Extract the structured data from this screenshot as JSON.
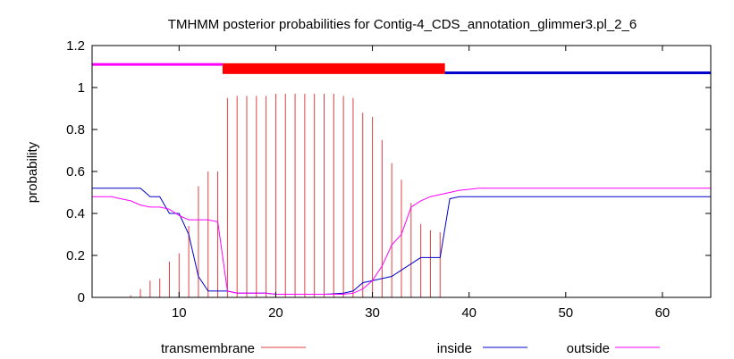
{
  "chart_data": {
    "type": "line",
    "title": "TMHMM posterior probabilities for Contig-4_CDS_annotation_glimmer3.pl_2_6",
    "xlabel": "",
    "ylabel": "probability",
    "xlim": [
      1,
      65
    ],
    "ylim": [
      0,
      1.2
    ],
    "x_ticks": [
      10,
      20,
      30,
      40,
      50,
      60
    ],
    "y_ticks": [
      0,
      0.2,
      0.4,
      0.6,
      0.8,
      1,
      1.2
    ],
    "y_tick_labels": [
      "0",
      "0.2",
      "0.4",
      "0.6",
      "0.8",
      "1",
      "1.2"
    ],
    "grid": false,
    "legend_position": "bottom",
    "x": [
      1,
      2,
      3,
      4,
      5,
      6,
      7,
      8,
      9,
      10,
      11,
      12,
      13,
      14,
      15,
      16,
      17,
      18,
      19,
      20,
      21,
      22,
      23,
      24,
      25,
      26,
      27,
      28,
      29,
      30,
      31,
      32,
      33,
      34,
      35,
      36,
      37,
      38,
      39,
      40,
      41,
      42,
      43,
      44,
      45,
      46,
      47,
      48,
      49,
      50,
      51,
      52,
      53,
      54,
      55,
      56,
      57,
      58,
      59,
      60,
      61,
      62,
      63,
      64,
      65
    ],
    "series": [
      {
        "name": "transmembrane",
        "color": "#e04040",
        "style": "impulses",
        "values": [
          0,
          0,
          0,
          0,
          0.01,
          0.04,
          0.08,
          0.09,
          0.17,
          0.21,
          0.34,
          0.53,
          0.6,
          0.6,
          0.95,
          0.96,
          0.96,
          0.96,
          0.96,
          0.97,
          0.97,
          0.97,
          0.97,
          0.97,
          0.97,
          0.97,
          0.96,
          0.95,
          0.88,
          0.86,
          0.75,
          0.64,
          0.56,
          0.45,
          0.35,
          0.32,
          0.31,
          0,
          0,
          0,
          0,
          0,
          0,
          0,
          0,
          0,
          0,
          0,
          0,
          0,
          0,
          0,
          0,
          0,
          0,
          0,
          0,
          0,
          0,
          0,
          0,
          0,
          0,
          0,
          0
        ]
      },
      {
        "name": "inside",
        "color": "#0000cc",
        "style": "line",
        "values": [
          0.52,
          0.52,
          0.52,
          0.52,
          0.52,
          0.52,
          0.48,
          0.48,
          0.4,
          0.4,
          0.3,
          0.1,
          0.03,
          0.03,
          0.03,
          0.02,
          0.02,
          0.02,
          0.02,
          0.015,
          0.015,
          0.015,
          0.015,
          0.015,
          0.015,
          0.017,
          0.02,
          0.03,
          0.07,
          0.08,
          0.09,
          0.1,
          0.13,
          0.16,
          0.19,
          0.19,
          0.19,
          0.47,
          0.48,
          0.48,
          0.48,
          0.48,
          0.48,
          0.48,
          0.48,
          0.48,
          0.48,
          0.48,
          0.48,
          0.48,
          0.48,
          0.48,
          0.48,
          0.48,
          0.48,
          0.48,
          0.48,
          0.48,
          0.48,
          0.48,
          0.48,
          0.48,
          0.48,
          0.48,
          0.48
        ]
      },
      {
        "name": "outside",
        "color": "#ff00ff",
        "style": "line",
        "values": [
          0.48,
          0.48,
          0.48,
          0.47,
          0.46,
          0.44,
          0.43,
          0.43,
          0.42,
          0.39,
          0.37,
          0.37,
          0.37,
          0.36,
          0.03,
          0.02,
          0.02,
          0.02,
          0.02,
          0.015,
          0.015,
          0.015,
          0.015,
          0.015,
          0.015,
          0.015,
          0.015,
          0.02,
          0.04,
          0.08,
          0.15,
          0.25,
          0.3,
          0.43,
          0.46,
          0.48,
          0.49,
          0.5,
          0.51,
          0.515,
          0.52,
          0.52,
          0.52,
          0.52,
          0.52,
          0.52,
          0.52,
          0.52,
          0.52,
          0.52,
          0.52,
          0.52,
          0.52,
          0.52,
          0.52,
          0.52,
          0.52,
          0.52,
          0.52,
          0.52,
          0.52,
          0.52,
          0.52,
          0.52,
          0.52
        ]
      }
    ],
    "topology_bars": [
      {
        "region": "outside",
        "start": 1,
        "end": 14,
        "y": 1.11,
        "color": "#ff00ff"
      },
      {
        "region": "transmembrane",
        "start": 15,
        "end": 37,
        "y": 1.09,
        "color": "#ff0000"
      },
      {
        "region": "inside",
        "start": 38,
        "end": 65,
        "y": 1.07,
        "color": "#0000cc"
      }
    ]
  }
}
